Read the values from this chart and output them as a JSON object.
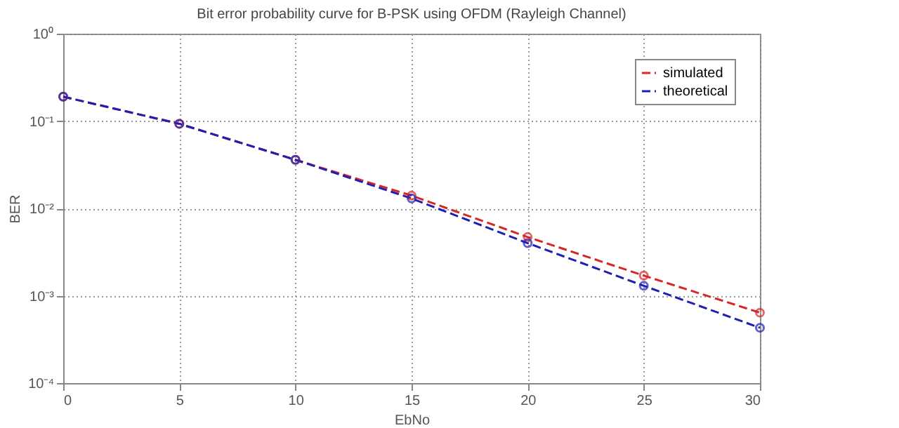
{
  "chart_data": {
    "type": "line",
    "title": "Bit error probability curve for B-PSK using OFDM (Rayleigh Channel)",
    "xlabel": "EbNo",
    "ylabel": "BER",
    "x": [
      0,
      5,
      10,
      15,
      20,
      25,
      30
    ],
    "series": [
      {
        "name": "simulated",
        "color": "#d62728",
        "values": [
          0.19,
          0.093,
          0.036,
          0.014,
          0.0047,
          0.0017,
          0.00064
        ]
      },
      {
        "name": "theoretical",
        "color": "#1f1fb4",
        "values": [
          0.19,
          0.093,
          0.036,
          0.013,
          0.004,
          0.0013,
          0.00043
        ]
      }
    ],
    "log": "y",
    "xlim": [
      0,
      30
    ],
    "xticks": [
      0,
      5,
      10,
      15,
      20,
      25,
      30
    ],
    "ylim": [
      0.0001,
      1
    ],
    "yticks": [
      {
        "value": 0.0001,
        "label": "10⁻⁴"
      },
      {
        "value": 0.001,
        "label": "10⁻³"
      },
      {
        "value": 0.01,
        "label": "10⁻²"
      },
      {
        "value": 0.1,
        "label": "10⁻¹"
      },
      {
        "value": 1,
        "label": "10⁰"
      }
    ],
    "grid": true,
    "legend": "top right",
    "marker": "circle",
    "line_style": "dashed"
  }
}
